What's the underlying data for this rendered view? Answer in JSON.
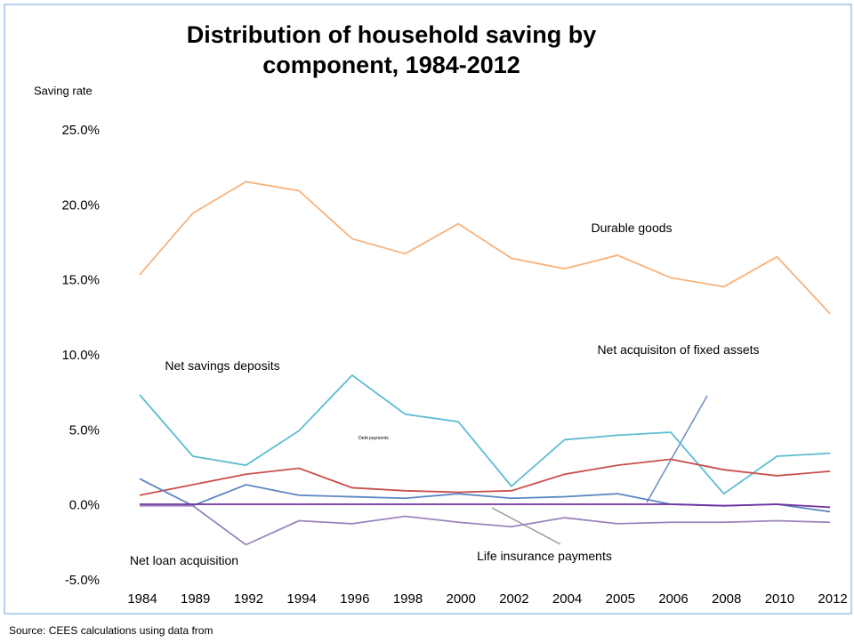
{
  "chart_data": {
    "type": "line",
    "title": "Distribution of household  saving by component, 1984-2012",
    "y_label": "Saving rate",
    "source": "Source: CEES calculations using data from",
    "categories": [
      "1984",
      "1989",
      "1992",
      "1994",
      "1996",
      "1998",
      "2000",
      "2002",
      "2004",
      "2005",
      "2006",
      "2008",
      "2010",
      "2012"
    ],
    "ylim": [
      -5,
      25
    ],
    "yticks": [
      {
        "value": 25,
        "label": "25.0%"
      },
      {
        "value": 20,
        "label": "20.0%"
      },
      {
        "value": 15,
        "label": "15.0%"
      },
      {
        "value": 10,
        "label": "10.0%"
      },
      {
        "value": 5,
        "label": "5.0%"
      },
      {
        "value": 0,
        "label": "0.0%"
      },
      {
        "value": -5,
        "label": "-5.0%"
      }
    ],
    "grid": false,
    "series": [
      {
        "name": "Durable goods",
        "color": "#f7b27b",
        "values": [
          15.4,
          19.5,
          21.6,
          21.0,
          17.8,
          16.8,
          18.8,
          16.5,
          15.8,
          16.7,
          15.2,
          14.6,
          16.6,
          12.8
        ]
      },
      {
        "name": "Net savings deposits",
        "color": "#5cbcd2",
        "values": [
          7.4,
          3.3,
          2.7,
          5.0,
          8.7,
          6.1,
          5.6,
          1.3,
          4.4,
          4.7,
          4.9,
          0.8,
          3.3,
          3.5
        ]
      },
      {
        "name": "Debt payments",
        "color": "#c9504d",
        "values": [
          0.7,
          1.4,
          2.1,
          2.5,
          1.2,
          1.0,
          0.9,
          1.0,
          2.1,
          2.7,
          3.1,
          2.4,
          2.0,
          2.3
        ]
      },
      {
        "name": "Net acquisiton of fixed assets",
        "color": "#5b86c4",
        "values": [
          1.8,
          0.0,
          1.4,
          0.7,
          0.6,
          0.5,
          0.8,
          0.5,
          0.6,
          0.8,
          0.1,
          0.0,
          0.1,
          -0.4
        ]
      },
      {
        "name": "Net loan acquisition",
        "color": "#9a84bd",
        "values": [
          0.0,
          0.0,
          -2.6,
          -1.0,
          -1.2,
          -0.7,
          -1.1,
          -1.4,
          -0.8,
          -1.2,
          -1.1,
          -1.1,
          -1.0,
          -1.1
        ]
      },
      {
        "name": "Life insurance payments",
        "color": "#7030a0",
        "values": [
          0.1,
          0.1,
          0.1,
          0.1,
          0.1,
          0.1,
          0.1,
          0.1,
          0.1,
          0.1,
          0.1,
          0.0,
          0.1,
          -0.1
        ]
      }
    ]
  }
}
